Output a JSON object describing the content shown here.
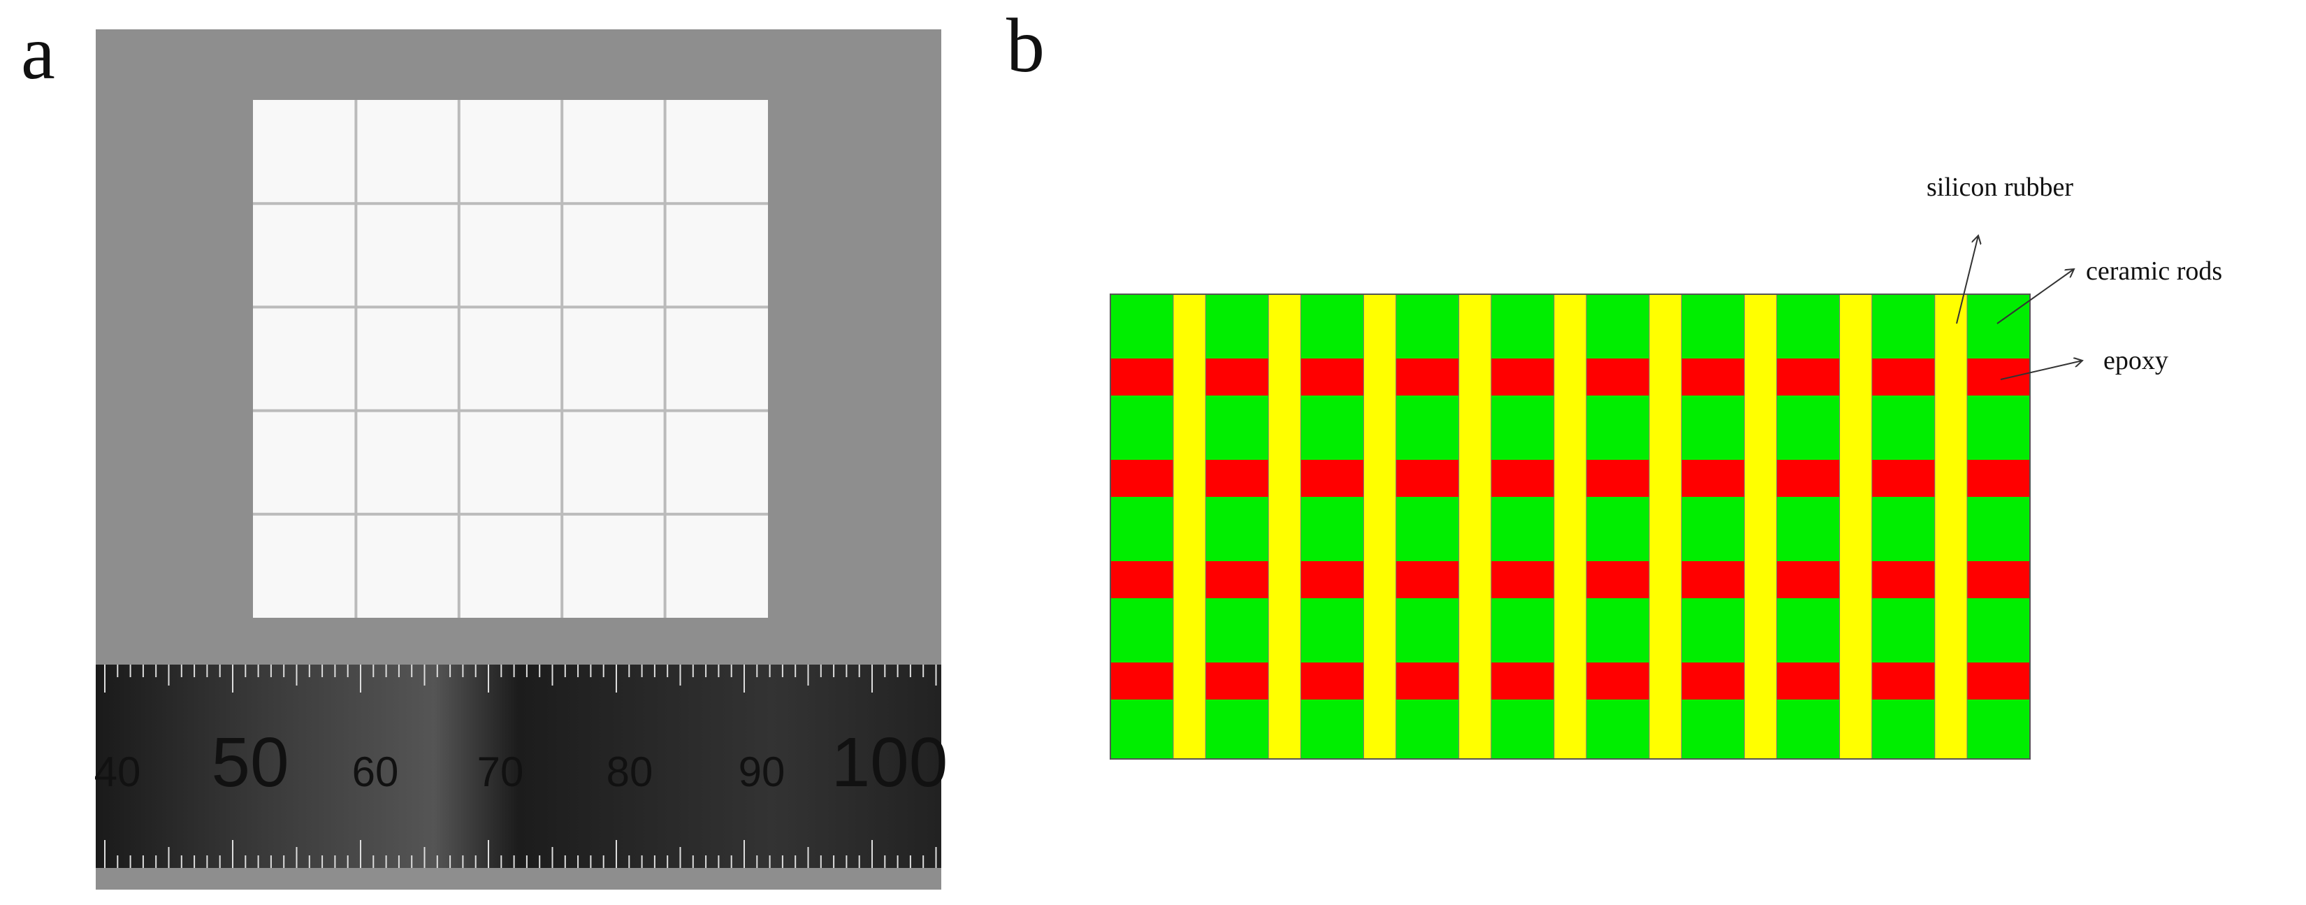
{
  "panel_a": {
    "label": "a",
    "ruler_labels": [
      "40",
      "50",
      "60",
      "70",
      "80",
      "90",
      "100"
    ]
  },
  "panel_b": {
    "label": "b",
    "annotations": [
      "silicon rubber",
      "ceramic rods",
      "epoxy"
    ]
  }
}
